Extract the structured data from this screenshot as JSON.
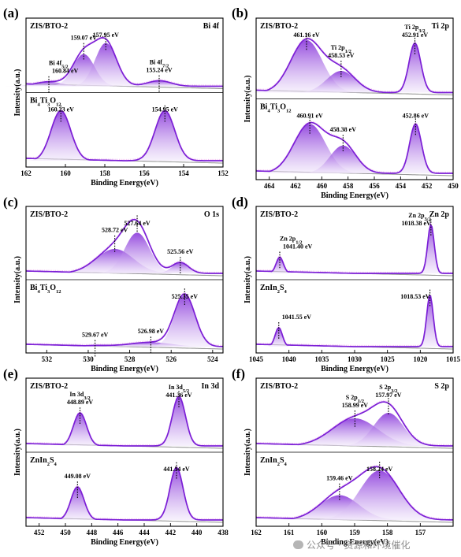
{
  "watermark": {
    "text": "公众号 · 资源和环境催化"
  },
  "colors": {
    "fill_dark": "#7b1fd6",
    "fill_light": "#efe4fa",
    "envelope": "#7b1fd6",
    "raw": "#f2b8f2",
    "baseline": "#9a9a9a"
  },
  "chart_data": [
    {
      "id": "a",
      "type": "line",
      "panel_letter": "(a)",
      "element": "Bi 4f",
      "xlabel": "Binding Energy(eV)",
      "ylabel": "Intensity(a.u.)",
      "xlim": [
        162,
        152
      ],
      "xticks": [
        162,
        160,
        158,
        156,
        154,
        152
      ],
      "subplots": [
        {
          "sample": "ZIS/BTO-2",
          "sample_sub": "",
          "peaks": [
            {
              "center": 160.84,
              "amplitude": 0.08,
              "width": 0.7,
              "label": "160.84 eV",
              "label_prefix": "Bi 4f",
              "label_sub": "5/2"
            },
            {
              "center": 159.07,
              "amplitude": 0.58,
              "width": 0.55,
              "label": "159.07 eV"
            },
            {
              "center": 157.95,
              "amplitude": 0.78,
              "width": 0.55,
              "label": "157.95 eV"
            },
            {
              "center": 155.24,
              "amplitude": 0.1,
              "width": 0.6,
              "label": "155.24 eV",
              "label_prefix": "Bi 4f",
              "label_sub": "7/2"
            }
          ]
        },
        {
          "sample": "Bi",
          "sample_sub": "4",
          "sample_rest": "Ti",
          "sample_sub2": "3",
          "sample_rest2": "O",
          "sample_sub3": "12",
          "peaks": [
            {
              "center": 160.23,
              "amplitude": 0.9,
              "width": 0.5,
              "label": "160.23 eV"
            },
            {
              "center": 154.95,
              "amplitude": 0.9,
              "width": 0.5,
              "label": "154.95 eV"
            }
          ]
        }
      ]
    },
    {
      "id": "b",
      "type": "line",
      "panel_letter": "(b)",
      "element": "Ti 2p",
      "xlabel": "Binding Energy(eV)",
      "ylabel": "Intensity(a.u.)",
      "xlim": [
        465,
        450
      ],
      "xticks": [
        464,
        462,
        460,
        458,
        456,
        454,
        452,
        450
      ],
      "subplots": [
        {
          "sample": "ZIS/BTO-2",
          "sample_sub": "",
          "peaks": [
            {
              "center": 461.16,
              "amplitude": 0.85,
              "width": 1.2,
              "label": "461.16 eV"
            },
            {
              "center": 458.53,
              "amplitude": 0.35,
              "width": 1.1,
              "label": "458.53 eV",
              "label_prefix": "Ti 2p",
              "label_sub": "1/2"
            },
            {
              "center": 452.91,
              "amplitude": 0.8,
              "width": 0.45,
              "label": "452.91 eV",
              "label_prefix": "Ti 2p",
              "label_sub": "3/2"
            }
          ]
        },
        {
          "sample": "Bi",
          "sample_sub": "4",
          "sample_rest": "Ti",
          "sample_sub2": "3",
          "sample_rest2": "O",
          "sample_sub3": "12",
          "peaks": [
            {
              "center": 460.91,
              "amplitude": 0.8,
              "width": 1.2,
              "label": "460.91 eV"
            },
            {
              "center": 458.38,
              "amplitude": 0.45,
              "width": 1.0,
              "label": "458.38 eV"
            },
            {
              "center": 452.86,
              "amplitude": 0.8,
              "width": 0.45,
              "label": "452.86 eV"
            }
          ]
        }
      ]
    },
    {
      "id": "c",
      "type": "line",
      "panel_letter": "(c)",
      "element": "O 1s",
      "xlabel": "Binding Energy(eV)",
      "ylabel": "Intensity(a.u.)",
      "xlim": [
        533,
        523.5
      ],
      "xticks": [
        532,
        530,
        528,
        526,
        524
      ],
      "subplots": [
        {
          "sample": "ZIS/BTO-2",
          "sample_sub": "",
          "peaks": [
            {
              "center": 528.72,
              "amplitude": 0.45,
              "width": 0.9,
              "label": "528.72 eV"
            },
            {
              "center": 527.64,
              "amplitude": 0.75,
              "width": 0.6,
              "label": "527.64 eV"
            },
            {
              "center": 525.56,
              "amplitude": 0.2,
              "width": 0.4,
              "label": "525.56 eV"
            }
          ]
        },
        {
          "sample": "Bi",
          "sample_sub": "4",
          "sample_rest": "Ti",
          "sample_sub2": "3",
          "sample_rest2": "O",
          "sample_sub3": "12",
          "peaks": [
            {
              "center": 529.67,
              "amplitude": 0.02,
              "width": 0.8,
              "label": "529.67 eV"
            },
            {
              "center": 526.98,
              "amplitude": 0.08,
              "width": 1.0,
              "label": "526.98 eV"
            },
            {
              "center": 525.35,
              "amplitude": 0.95,
              "width": 0.5,
              "label": "525.35 eV"
            }
          ]
        }
      ]
    },
    {
      "id": "d",
      "type": "line",
      "panel_letter": "(d)",
      "element": "Zn 2p",
      "xlabel": "Binding Energy(eV)",
      "ylabel": "Intensity(a.u.)",
      "xlim": [
        1045,
        1015
      ],
      "xticks": [
        1045,
        1040,
        1035,
        1030,
        1025,
        1020,
        1015
      ],
      "subplots": [
        {
          "sample": "ZIS/BTO-2",
          "sample_sub": "",
          "peaks": [
            {
              "center": 1041.4,
              "amplitude": 0.3,
              "width": 0.55,
              "label": "1041.40 eV",
              "label_prefix": "Zn 2p",
              "label_sub": "1/2"
            },
            {
              "center": 1018.38,
              "amplitude": 0.9,
              "width": 0.5,
              "label": "1018.38 eV",
              "label_prefix": "Zn 2p",
              "label_sub": "3/2"
            }
          ]
        },
        {
          "sample": "ZnIn",
          "sample_sub": "2",
          "sample_rest": "S",
          "sample_sub2": "4",
          "peaks": [
            {
              "center": 1041.55,
              "amplitude": 0.35,
              "width": 0.55,
              "label": "1041.55 eV"
            },
            {
              "center": 1018.53,
              "amplitude": 0.95,
              "width": 0.5,
              "label": "1018.53 eV"
            }
          ]
        }
      ]
    },
    {
      "id": "e",
      "type": "line",
      "panel_letter": "(e)",
      "element": "In 3d",
      "xlabel": "Binding Energy(eV)",
      "ylabel": "Intensity(a.u.)",
      "xlim": [
        453,
        438
      ],
      "xticks": [
        452,
        450,
        448,
        446,
        444,
        442,
        440,
        438
      ],
      "subplots": [
        {
          "sample": "ZIS/BTO-2",
          "sample_sub": "",
          "peaks": [
            {
              "center": 448.89,
              "amplitude": 0.6,
              "width": 0.5,
              "label": "448.89 eV",
              "label_prefix": "In 3d",
              "label_sub": "3/2"
            },
            {
              "center": 441.36,
              "amplitude": 0.9,
              "width": 0.5,
              "label": "441.36 eV",
              "label_prefix": "In 3d",
              "label_sub": "5/2"
            }
          ]
        },
        {
          "sample": "ZnIn",
          "sample_sub": "2",
          "sample_rest": "S",
          "sample_sub2": "4",
          "peaks": [
            {
              "center": 449.08,
              "amplitude": 0.6,
              "width": 0.5,
              "label": "449.08 eV"
            },
            {
              "center": 441.54,
              "amplitude": 0.95,
              "width": 0.5,
              "label": "441.54 eV"
            }
          ]
        }
      ]
    },
    {
      "id": "f",
      "type": "line",
      "panel_letter": "(f)",
      "element": "S 2p",
      "xlabel": "Binding Energy(eV)",
      "ylabel": "Intensity(a.u.)",
      "xlim": [
        162,
        156
      ],
      "xticks": [
        162,
        161,
        160,
        159,
        158,
        157
      ],
      "subplots": [
        {
          "sample": "ZIS/BTO-2",
          "sample_sub": "",
          "peaks": [
            {
              "center": 158.99,
              "amplitude": 0.5,
              "width": 0.7,
              "label": "158.99 eV",
              "label_prefix": "S 2p",
              "label_sub": "1/2"
            },
            {
              "center": 157.97,
              "amplitude": 0.6,
              "width": 0.45,
              "label": "157.97 eV",
              "label_prefix": "S 2p",
              "label_sub": "3/2"
            }
          ]
        },
        {
          "sample": "ZnIn",
          "sample_sub": "2",
          "sample_rest": "S",
          "sample_sub2": "4",
          "peaks": [
            {
              "center": 159.46,
              "amplitude": 0.45,
              "width": 0.6,
              "label": "159.46 eV"
            },
            {
              "center": 158.24,
              "amplitude": 0.9,
              "width": 0.6,
              "label": "158.24 eV"
            }
          ]
        }
      ]
    }
  ]
}
